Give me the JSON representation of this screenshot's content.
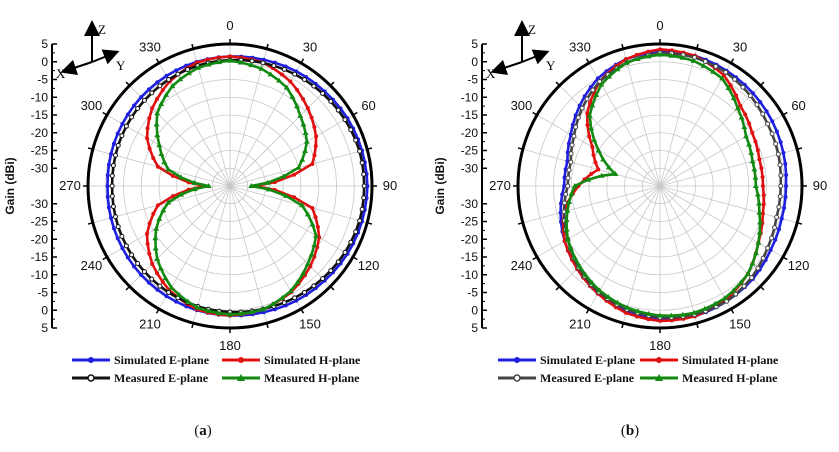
{
  "figure": {
    "axis_triad": {
      "z": "Z",
      "x": "X",
      "y": "Y"
    }
  },
  "chart_data": [
    {
      "type": "polar-line",
      "caption": "a",
      "ylabel": "Gain (dBi)",
      "r_range_dBi": [
        -35,
        5
      ],
      "r_ticks": [
        5,
        0,
        -5,
        -10,
        -15,
        -20,
        -25,
        -30
      ],
      "angle_labels": [
        "0",
        "30",
        "60",
        "90",
        "120",
        "150",
        "180",
        "210",
        "240",
        "270",
        "300",
        "330"
      ],
      "angles": [
        0,
        15,
        30,
        45,
        60,
        75,
        90,
        105,
        120,
        135,
        150,
        165,
        180,
        195,
        210,
        225,
        240,
        255,
        270,
        285,
        300,
        315,
        330,
        345
      ],
      "series": [
        {
          "name": "Simulated E-plane",
          "color": "#1f1fe0",
          "marker": "circle",
          "values": [
            1.5,
            1.8,
            2.3,
            2.7,
            3.2,
            3.5,
            3.7,
            3.5,
            3.2,
            2.7,
            2.3,
            1.8,
            1.5,
            1.2,
            0.8,
            0.4,
            0,
            -0.3,
            -0.5,
            -0.3,
            0,
            0.4,
            0.8,
            1.2
          ]
        },
        {
          "name": "Simulated H-plane",
          "color": "#e01010",
          "marker": "circle",
          "values": [
            1.5,
            1,
            -1,
            -4,
            -7,
            -11,
            -28,
            -11,
            -6,
            -3,
            -0.5,
            1,
            1.5,
            1,
            -1,
            -4,
            -8,
            -14,
            -28,
            -14,
            -8,
            -4,
            -1,
            1
          ]
        },
        {
          "name": "Measured E-plane",
          "color": "#111111",
          "marker": "circle-open",
          "values": [
            0.5,
            0.9,
            1.4,
            1.9,
            2.4,
            2.8,
            2.8,
            2.8,
            2.4,
            1.9,
            1.4,
            0.9,
            0.5,
            0.1,
            -0.4,
            -0.9,
            -1.3,
            -1.6,
            -1.8,
            -1.6,
            -1.3,
            -0.9,
            -0.4,
            0.1
          ]
        },
        {
          "name": "Measured H-plane",
          "color": "#128a12",
          "marker": "triangle",
          "values": [
            0.3,
            -0.8,
            -3,
            -7,
            -10,
            -15,
            -29,
            -14,
            -7,
            -4,
            -0.8,
            1,
            1.2,
            0.5,
            -2,
            -6,
            -11,
            -17,
            -29,
            -17,
            -12,
            -6,
            -2.5,
            -0.5
          ]
        }
      ]
    },
    {
      "type": "polar-line",
      "caption": "b",
      "ylabel": "Gain (dBi)",
      "r_range_dBi": [
        -35,
        5
      ],
      "r_ticks": [
        5,
        0,
        -5,
        -10,
        -15,
        -20,
        -25,
        -30
      ],
      "angle_labels": [
        "0",
        "30",
        "60",
        "90",
        "120",
        "150",
        "180",
        "210",
        "240",
        "270",
        "300",
        "330"
      ],
      "angles": [
        0,
        15,
        30,
        45,
        60,
        75,
        90,
        105,
        120,
        135,
        150,
        165,
        180,
        195,
        210,
        225,
        240,
        255,
        270,
        285,
        300,
        315,
        330,
        345
      ],
      "series": [
        {
          "name": "Simulated E-plane",
          "color": "#1f1fe0",
          "marker": "circle",
          "values": [
            3,
            3,
            2.5,
            2,
            1.5,
            1,
            0.5,
            0.5,
            1,
            2,
            2.5,
            3,
            2.5,
            1.5,
            0,
            -2,
            -4,
            -6,
            -8,
            -8,
            -6,
            -3,
            0,
            2
          ]
        },
        {
          "name": "Simulated H-plane",
          "color": "#e01010",
          "marker": "circle",
          "values": [
            3.5,
            3,
            1,
            -3,
            -5,
            -6,
            -6,
            -5,
            -3,
            0,
            2,
            3,
            3,
            2,
            0,
            -2,
            -4,
            -7,
            -12,
            -17,
            -13,
            -6,
            -1,
            2
          ]
        },
        {
          "name": "Measured E-plane",
          "color": "#444444",
          "marker": "circle-open",
          "values": [
            2.5,
            2.5,
            2,
            1,
            0,
            -0.5,
            -1,
            -1,
            0,
            1.5,
            2.5,
            2.5,
            2,
            1,
            -0.5,
            -2.5,
            -5,
            -7,
            -9,
            -9,
            -7,
            -4,
            -1,
            1
          ]
        },
        {
          "name": "Measured H-plane",
          "color": "#128a12",
          "marker": "triangle",
          "values": [
            2,
            1.5,
            0,
            -4,
            -7,
            -8,
            -8,
            -6,
            -3,
            0,
            1.5,
            2,
            1.5,
            0.5,
            -1,
            -3,
            -5,
            -8,
            -11,
            -22,
            -15,
            -7,
            -2,
            1
          ]
        }
      ]
    }
  ]
}
